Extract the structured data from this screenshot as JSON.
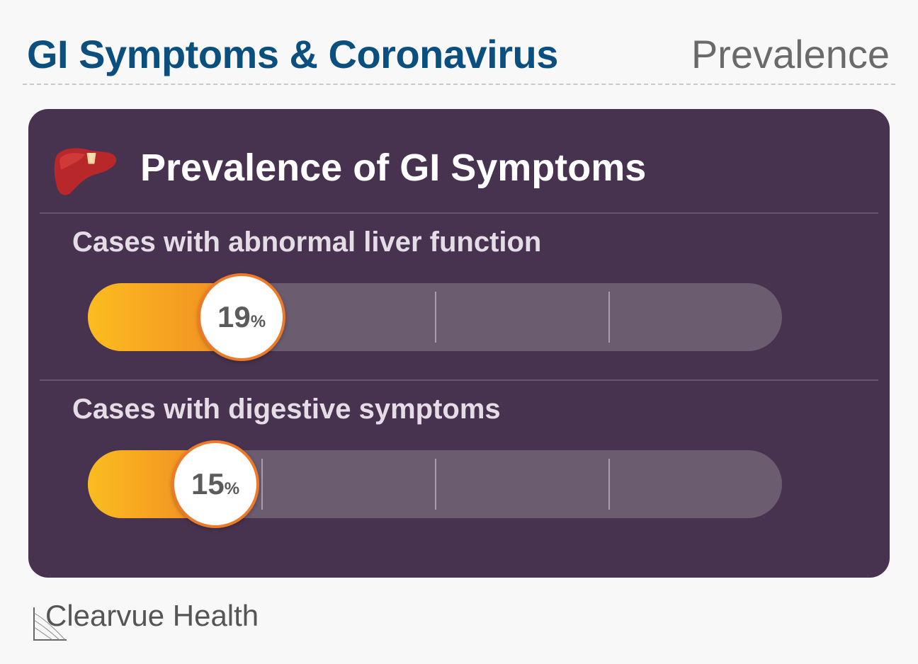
{
  "header": {
    "title": "GI Symptoms & Coronavirus",
    "section": "Prevalence"
  },
  "card": {
    "title": "Prevalence of GI Symptoms",
    "icon": "liver-icon"
  },
  "chart_data": {
    "type": "bar",
    "title": "Prevalence of GI Symptoms",
    "categories": [
      "Cases with abnormal liver function",
      "Cases with digestive symptoms"
    ],
    "values": [
      19,
      15
    ],
    "unit": "%",
    "ylim": [
      0,
      100
    ],
    "colors": {
      "fill_start": "#fbbc1f",
      "fill_end": "#f08a23",
      "track": "#6b5c70",
      "badge_border": "#ec7a28"
    }
  },
  "footer": {
    "brand": "Clearvue Health"
  },
  "colors": {
    "title": "#0b4f7f",
    "card_bg": "#47334f"
  }
}
